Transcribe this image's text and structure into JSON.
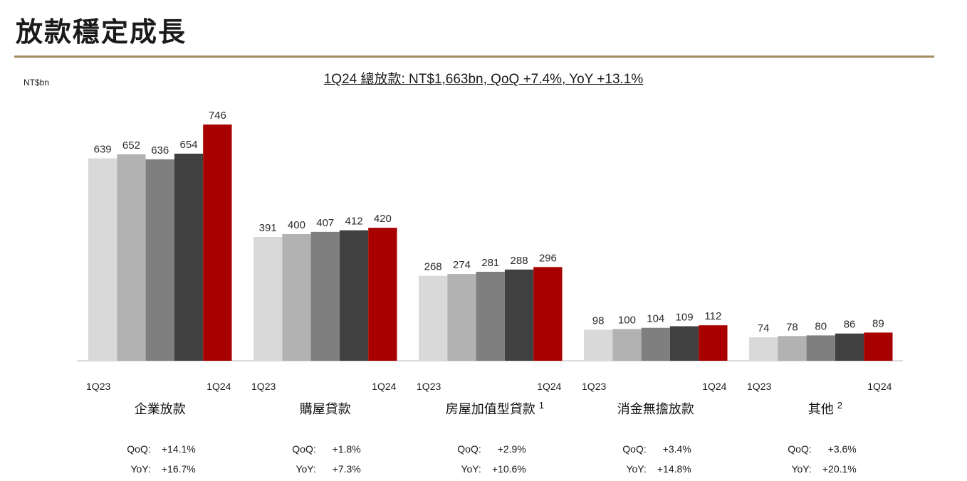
{
  "page": {
    "title": "放款穩定成長",
    "unit": "NT$bn",
    "summary": "1Q24 總放款: NT$1,663bn, QoQ +7.4%, YoY +13.1%"
  },
  "colors": {
    "title_rule": "#a38a62",
    "series": [
      "#d9d9d9",
      "#b2b2b2",
      "#7f7f7f",
      "#404040",
      "#a80000"
    ]
  },
  "chart_data": {
    "type": "bar",
    "ylim": [
      0,
      800
    ],
    "period_start_label": "1Q23",
    "period_end_label": "1Q24",
    "categories": [
      "企業放款",
      "購屋貸款",
      "房屋加值型貸款",
      "消金無擔放款",
      "其他"
    ],
    "footnotes": [
      "",
      "",
      "1",
      "",
      "2"
    ],
    "series": [
      {
        "values": [
          639,
          391,
          268,
          98,
          74
        ]
      },
      {
        "values": [
          652,
          400,
          274,
          100,
          78
        ]
      },
      {
        "values": [
          636,
          407,
          281,
          104,
          80
        ]
      },
      {
        "values": [
          654,
          412,
          288,
          109,
          86
        ]
      },
      {
        "values": [
          746,
          420,
          296,
          112,
          89
        ]
      }
    ]
  },
  "metrics": {
    "qoq_label": "QoQ:",
    "yoy_label": "YoY:",
    "qoq": [
      "+14.1%",
      "+1.8%",
      "+2.9%",
      "+3.4%",
      "+3.6%"
    ],
    "yoy": [
      "+16.7%",
      "+7.3%",
      "+10.6%",
      "+14.8%",
      "+20.1%"
    ]
  }
}
